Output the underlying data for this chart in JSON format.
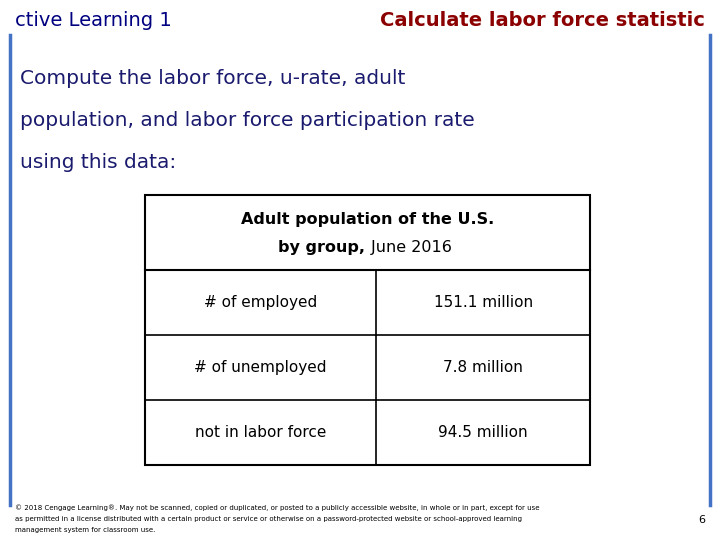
{
  "header_left": "ctive Learning 1",
  "header_right": "Calculate labor force statistic",
  "header_left_color": "#000080",
  "header_right_color": "#8B0000",
  "body_text_line1": "Compute the labor force, u-rate, adult",
  "body_text_line2": "population, and labor force participation rate",
  "body_text_line3": "using this data:",
  "body_text_color": "#1a1a6e",
  "table_title_bold": "Adult population of the U.S.",
  "table_title_bold2": "by group,",
  "table_title_normal": " June 2016",
  "table_rows": [
    [
      "# of employed",
      "151.1 million"
    ],
    [
      "# of unemployed",
      "7.8 million"
    ],
    [
      "not in labor force",
      "94.5 million"
    ]
  ],
  "border_color": "#4472c4",
  "background_color": "#ffffff",
  "footer_text": "© 2018 Cengage Learning®. May not be scanned, copied or duplicated, or posted to a publicly accessible website, in whole or in part, except for use\nas permitted in a license distributed with a certain product or service or otherwise on a password-protected website or school-approved learning\nmanagement system for classroom use.",
  "footer_number": "6",
  "table_border_color": "#000000"
}
